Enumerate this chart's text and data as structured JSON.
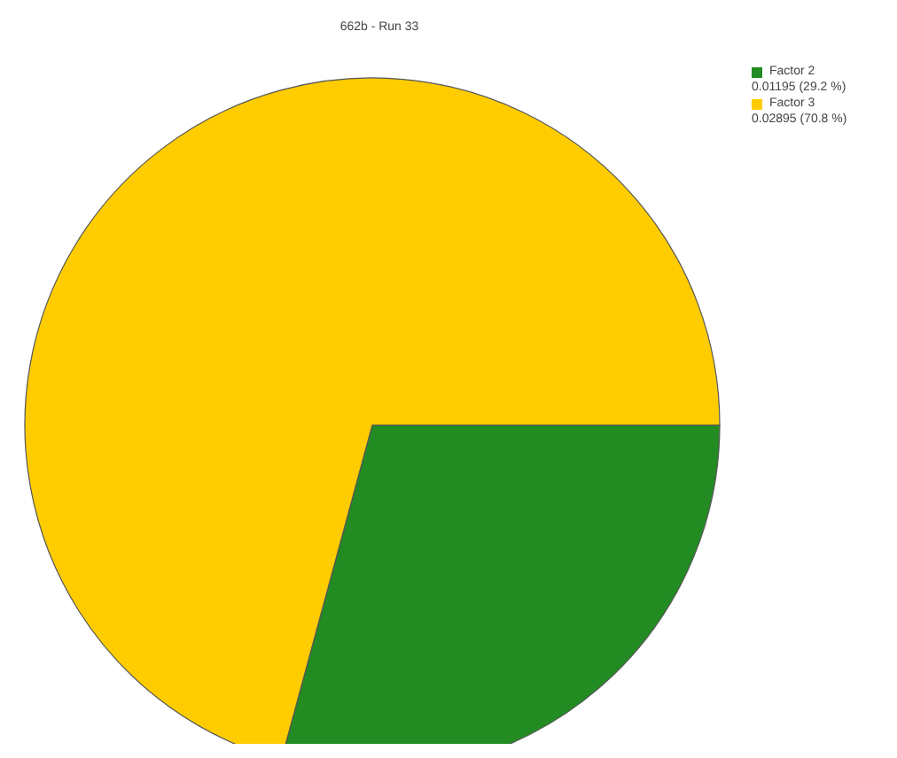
{
  "chart_data": {
    "type": "pie",
    "title": "662b - Run 33",
    "categories": [
      "Factor 2",
      "Factor 3"
    ],
    "values": [
      0.01195,
      0.02895
    ],
    "value_labels": [
      "0.01195 (29.2 %)",
      "0.02895 (70.8 %)"
    ],
    "colors": [
      "#228b22",
      "#ffcc00"
    ],
    "legend": "top right"
  }
}
